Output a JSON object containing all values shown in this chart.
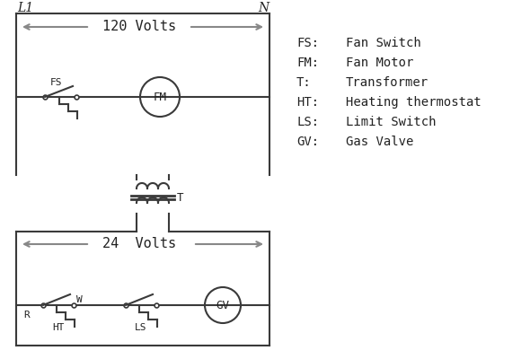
{
  "bg_color": "#ffffff",
  "line_color": "#3a3a3a",
  "arrow_color": "#888888",
  "text_color": "#222222",
  "legend": [
    [
      "FS:",
      "Fan Switch"
    ],
    [
      "FM:",
      "Fan Motor"
    ],
    [
      "T:",
      "Transformer"
    ],
    [
      "HT:",
      "Heating thermostat"
    ],
    [
      "LS:",
      "Limit Switch"
    ],
    [
      "GV:",
      "Gas Valve"
    ]
  ],
  "L1_label": "L1",
  "N_label": "N",
  "volts120": "120 Volts",
  "volts24": "24  Volts",
  "T_label": "T",
  "R_label": "R",
  "W_label": "W",
  "HT_label": "HT",
  "LS_label": "LS",
  "FS_label": "FS",
  "FM_label": "FM",
  "GV_label": "GV"
}
